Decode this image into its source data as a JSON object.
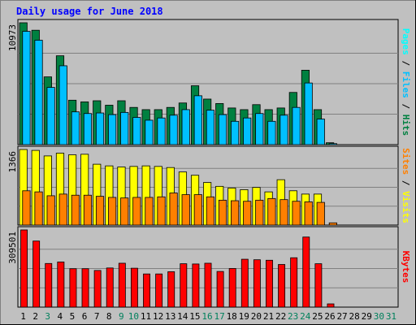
{
  "chart_data": {
    "type": "bar",
    "title": "Daily usage for June 2018",
    "categories": [
      "1",
      "2",
      "3",
      "4",
      "5",
      "6",
      "7",
      "8",
      "9",
      "10",
      "11",
      "12",
      "13",
      "14",
      "15",
      "16",
      "17",
      "18",
      "19",
      "20",
      "21",
      "22",
      "23",
      "24",
      "25",
      "26",
      "27",
      "28",
      "29",
      "30",
      "31"
    ],
    "weekend_days": [
      "3",
      "9",
      "10",
      "16",
      "17",
      "23",
      "24",
      "30",
      "31"
    ],
    "panels": [
      {
        "id": "hits-files-pages",
        "ymax": 10973,
        "ytick_label": "10973",
        "side_label": [
          "Pages",
          "Files",
          "Hits"
        ],
        "series": [
          {
            "name": "Hits",
            "color": "#008040",
            "values": [
              10973,
              10300,
              6100,
              8000,
              4000,
              3850,
              3950,
              3550,
              3950,
              3350,
              3150,
              3150,
              3350,
              3750,
              5300,
              4100,
              3700,
              3300,
              3150,
              3600,
              3150,
              3300,
              4700,
              6700,
              3150,
              170,
              0,
              0,
              0,
              0,
              0
            ]
          },
          {
            "name": "Files",
            "color": "#00c0ff",
            "values": [
              10200,
              9400,
              5150,
              7100,
              2950,
              2800,
              2850,
              2700,
              2900,
              2450,
              2200,
              2400,
              2650,
              3150,
              4400,
              3100,
              2700,
              2100,
              2400,
              2800,
              2100,
              2650,
              3350,
              5550,
              2300,
              90,
              0,
              0,
              0,
              0,
              0
            ]
          },
          {
            "name": "Pages",
            "color": "#00ffff",
            "values": [
              0,
              0,
              0,
              0,
              0,
              0,
              0,
              0,
              0,
              0,
              0,
              0,
              0,
              0,
              0,
              0,
              0,
              0,
              0,
              0,
              0,
              0,
              0,
              0,
              0,
              0,
              0,
              0,
              0,
              0,
              0
            ]
          }
        ]
      },
      {
        "id": "visits-sites",
        "ymax": 1366,
        "ytick_label": "1366",
        "side_label": [
          "Sites",
          "Visits"
        ],
        "series": [
          {
            "name": "Visits",
            "color": "#ffff00",
            "values": [
              1366,
              1350,
              1250,
              1300,
              1270,
              1280,
              1100,
              1070,
              1050,
              1060,
              1070,
              1060,
              1040,
              960,
              900,
              770,
              700,
              670,
              640,
              680,
              600,
              820,
              620,
              560,
              560,
              0,
              0,
              0,
              0,
              0,
              0
            ]
          },
          {
            "name": "Sites",
            "color": "#ff8000",
            "values": [
              620,
              600,
              530,
              560,
              540,
              540,
              520,
              500,
              490,
              500,
              500,
              510,
              580,
              550,
              550,
              510,
              450,
              440,
              430,
              450,
              480,
              460,
              430,
              420,
              410,
              40,
              0,
              0,
              0,
              0,
              0
            ]
          }
        ]
      },
      {
        "id": "kbytes",
        "ymax": 309501,
        "ytick_label": "309501",
        "side_label": [
          "KBytes"
        ],
        "series": [
          {
            "name": "KBytes",
            "color": "#ff0000",
            "values": [
              309501,
              265000,
              175000,
              181000,
              154000,
              154000,
              147000,
              157000,
              176000,
              156000,
              133000,
              133000,
              142000,
              174000,
              173000,
              176000,
              143000,
              155000,
              192000,
              190000,
              188000,
              171000,
              198000,
              281000,
              174000,
              13000,
              0,
              0,
              0,
              0,
              0
            ]
          }
        ]
      }
    ],
    "colors": {
      "background": "#c0c0c0",
      "title": "#0000ff",
      "weekday_tick": "#000000",
      "weekend_tick": "#00805c",
      "gridline": "#808080",
      "side_slash": "#000000"
    }
  }
}
